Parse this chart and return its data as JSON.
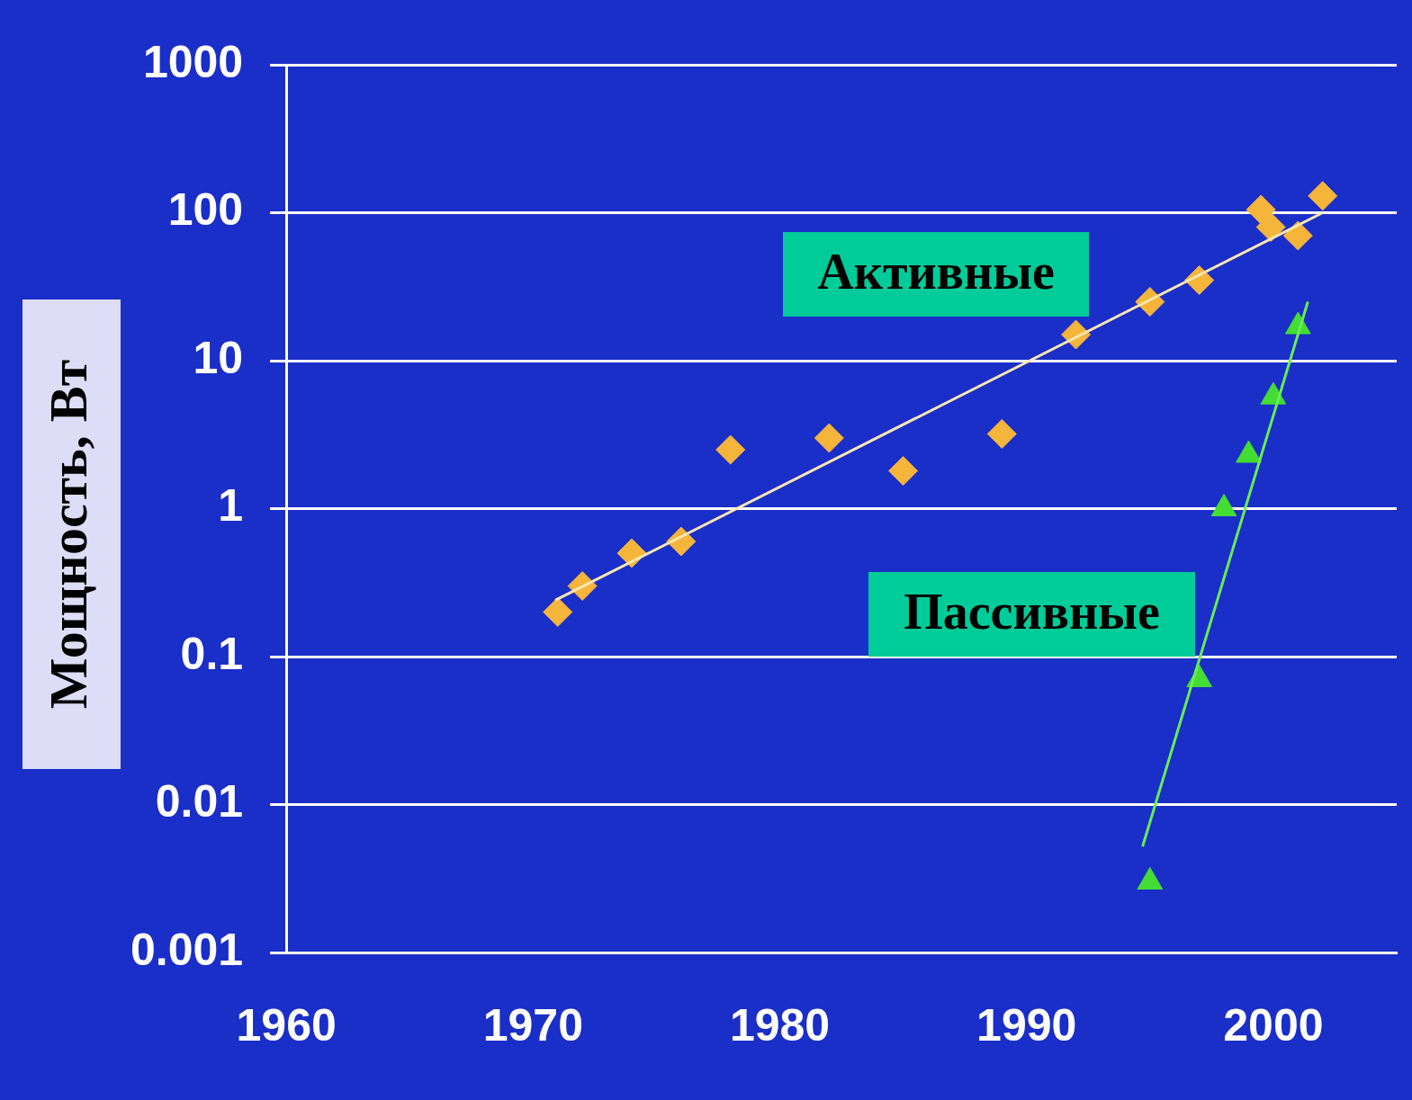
{
  "chart_data": {
    "type": "scatter",
    "ylabel": "Мощность, Вт",
    "log": "y",
    "grid": "y",
    "legend": false,
    "xlim": [
      1960,
      2005
    ],
    "xticks": [
      1960,
      1970,
      1980,
      1990,
      2000
    ],
    "ylim": [
      0.001,
      1000
    ],
    "yticks": [
      0.001,
      0.01,
      0.1,
      1,
      10,
      100,
      1000
    ],
    "series": [
      {
        "name": "Активные",
        "marker": "diamond",
        "color": "#f5b43a",
        "x": [
          1971,
          1972,
          1974,
          1976,
          1978,
          1982,
          1985,
          1989,
          1992,
          1995,
          1997,
          1999.5,
          1999.9,
          2001,
          2002
        ],
        "values": [
          0.2,
          0.3,
          0.5,
          0.6,
          2.5,
          3,
          1.8,
          3.2,
          15,
          25,
          35,
          105,
          80,
          70,
          130
        ]
      },
      {
        "name": "Пассивные",
        "marker": "triangle",
        "color": "#44dd33",
        "x": [
          1995,
          1997,
          1998,
          1999,
          2000,
          2001
        ],
        "values": [
          0.003,
          0.07,
          1,
          2.3,
          5.7,
          17
        ]
      },
      {
        "type": "line",
        "marker": "none",
        "color": "#f8e8b0",
        "x": [
          1970.9,
          2002
        ],
        "values": [
          0.24,
          100
        ]
      },
      {
        "type": "line",
        "marker": "none",
        "color": "#66ee55",
        "x": [
          1994.7,
          2001.4
        ],
        "values": [
          0.0052,
          25
        ]
      }
    ]
  }
}
